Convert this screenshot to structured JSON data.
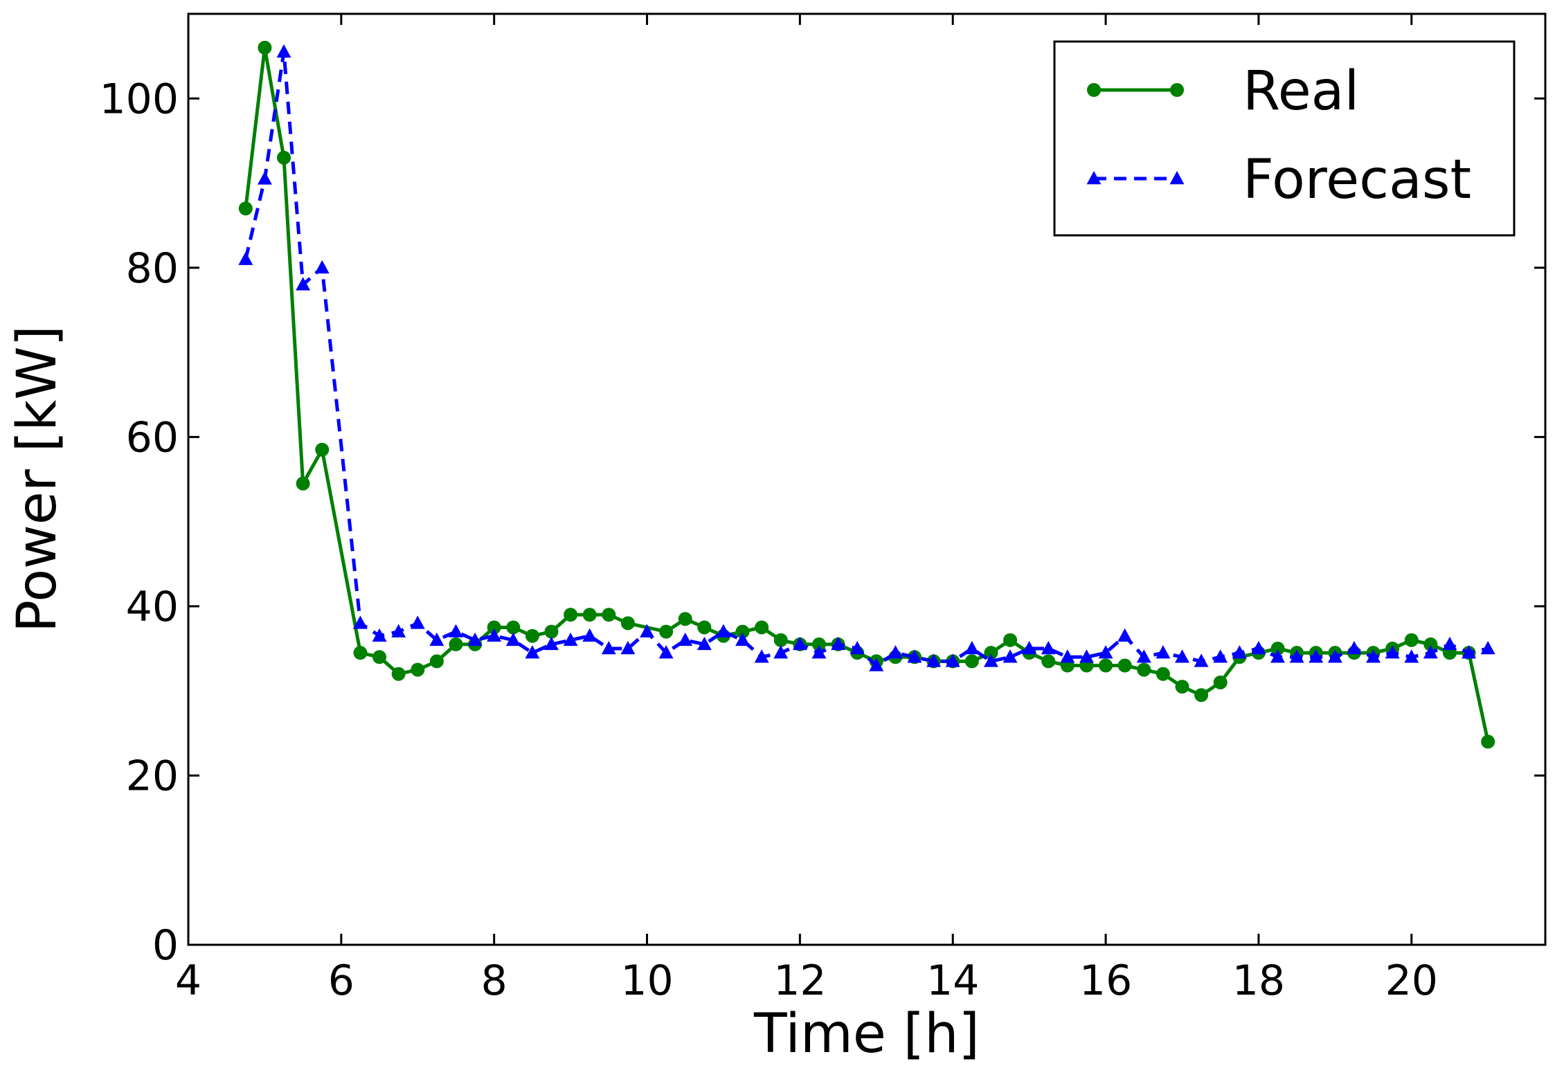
{
  "chart_data": {
    "type": "line",
    "title": "",
    "xlabel": "Time [h]",
    "ylabel": "Power [kW]",
    "xlim": [
      4,
      21.75
    ],
    "ylim": [
      0,
      110
    ],
    "xticks": [
      4,
      6,
      8,
      10,
      12,
      14,
      16,
      18,
      20
    ],
    "yticks": [
      0,
      20,
      40,
      60,
      80,
      100
    ],
    "grid": false,
    "legend_position": "top-right",
    "series": [
      {
        "name": "Real",
        "color": "#008000",
        "line_style": "solid",
        "marker": "circle",
        "x": [
          4.75,
          5.0,
          5.25,
          5.5,
          5.75,
          6.25,
          6.5,
          6.75,
          7.0,
          7.25,
          7.5,
          7.75,
          8.0,
          8.25,
          8.5,
          8.75,
          9.0,
          9.25,
          9.5,
          9.75,
          10.25,
          10.5,
          10.75,
          11.0,
          11.25,
          11.5,
          11.75,
          12.0,
          12.25,
          12.5,
          12.75,
          13.0,
          13.25,
          13.5,
          13.75,
          14.0,
          14.25,
          14.5,
          14.75,
          15.0,
          15.25,
          15.5,
          15.75,
          16.0,
          16.25,
          16.5,
          16.75,
          17.0,
          17.25,
          17.5,
          17.75,
          18.0,
          18.25,
          18.5,
          18.75,
          19.0,
          19.25,
          19.5,
          19.75,
          20.0,
          20.25,
          20.5,
          20.75,
          21.0
        ],
        "values": [
          87,
          106,
          93,
          54.5,
          58.5,
          34.5,
          34,
          32,
          32.5,
          33.5,
          35.5,
          35.5,
          37.5,
          37.5,
          36.5,
          37,
          39,
          39,
          39,
          38,
          37,
          38.5,
          37.5,
          36.5,
          37,
          37.5,
          36,
          35.5,
          35.5,
          35.5,
          34.5,
          33.5,
          34,
          34,
          33.5,
          33.5,
          33.5,
          34.5,
          36,
          34.5,
          33.5,
          33,
          33,
          33,
          33,
          32.5,
          32,
          30.5,
          29.5,
          31,
          34,
          34.5,
          35,
          34.5,
          34.5,
          34.5,
          34.5,
          34.5,
          35,
          36,
          35.5,
          34.5,
          34.5,
          24
        ]
      },
      {
        "name": "Forecast",
        "color": "#0000ff",
        "line_style": "dashed",
        "marker": "triangle",
        "x": [
          4.75,
          5.0,
          5.25,
          5.5,
          5.75,
          6.25,
          6.5,
          6.75,
          7.0,
          7.25,
          7.5,
          7.75,
          8.0,
          8.25,
          8.5,
          8.75,
          9.0,
          9.25,
          9.5,
          9.75,
          10.0,
          10.25,
          10.5,
          10.75,
          11.0,
          11.25,
          11.5,
          11.75,
          12.0,
          12.25,
          12.5,
          12.75,
          13.0,
          13.25,
          13.5,
          13.75,
          14.0,
          14.25,
          14.5,
          14.75,
          15.0,
          15.25,
          15.5,
          15.75,
          16.0,
          16.25,
          16.5,
          16.75,
          17.0,
          17.25,
          17.5,
          17.75,
          18.0,
          18.25,
          18.5,
          18.75,
          19.0,
          19.25,
          19.5,
          19.75,
          20.0,
          20.25,
          20.5,
          20.75,
          21.0
        ],
        "values": [
          81,
          90.5,
          105.5,
          78,
          80,
          38,
          36.5,
          37,
          38,
          36,
          37,
          36,
          36.5,
          36,
          34.5,
          35.5,
          36,
          36.5,
          35,
          35,
          37,
          34.5,
          36,
          35.5,
          37,
          36,
          34,
          34.5,
          35.5,
          34.5,
          35.5,
          35,
          33,
          34.5,
          34,
          33.5,
          33.5,
          35,
          33.5,
          34,
          35,
          35,
          34,
          34,
          34.5,
          36.5,
          34,
          34.5,
          34,
          33.5,
          34,
          34.5,
          35,
          34,
          34,
          34,
          34,
          35,
          34,
          34.5,
          34,
          34.5,
          35.5,
          34.5,
          35
        ]
      }
    ]
  }
}
